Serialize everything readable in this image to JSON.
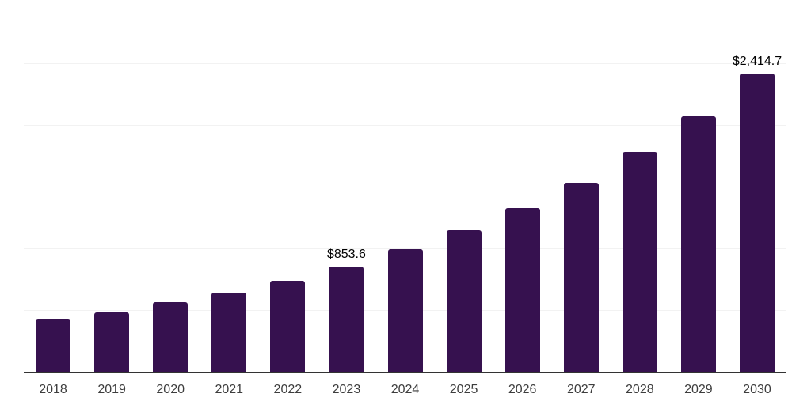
{
  "chart_data": {
    "type": "bar",
    "title": "",
    "xlabel": "",
    "ylabel": "",
    "categories": [
      "2018",
      "2019",
      "2020",
      "2021",
      "2022",
      "2023",
      "2024",
      "2025",
      "2026",
      "2027",
      "2028",
      "2029",
      "2030"
    ],
    "values": [
      428,
      482,
      562,
      639,
      735,
      853.6,
      992,
      1146,
      1325,
      1532,
      1783,
      2072,
      2414.7
    ],
    "data_labels": {
      "2023": "$853.6",
      "2030": "$2,414.7"
    },
    "ylim": [
      0,
      3000
    ],
    "gridline_interval": 500,
    "grid": true,
    "legend": false,
    "y_axis_labels_visible": false
  },
  "style": {
    "bar_color": "#36114F",
    "grid_color": "#f2f2f2",
    "axis_color": "#333333",
    "value_label_color": "#000000",
    "tick_color": "#3d3d3d",
    "background": "#ffffff"
  }
}
